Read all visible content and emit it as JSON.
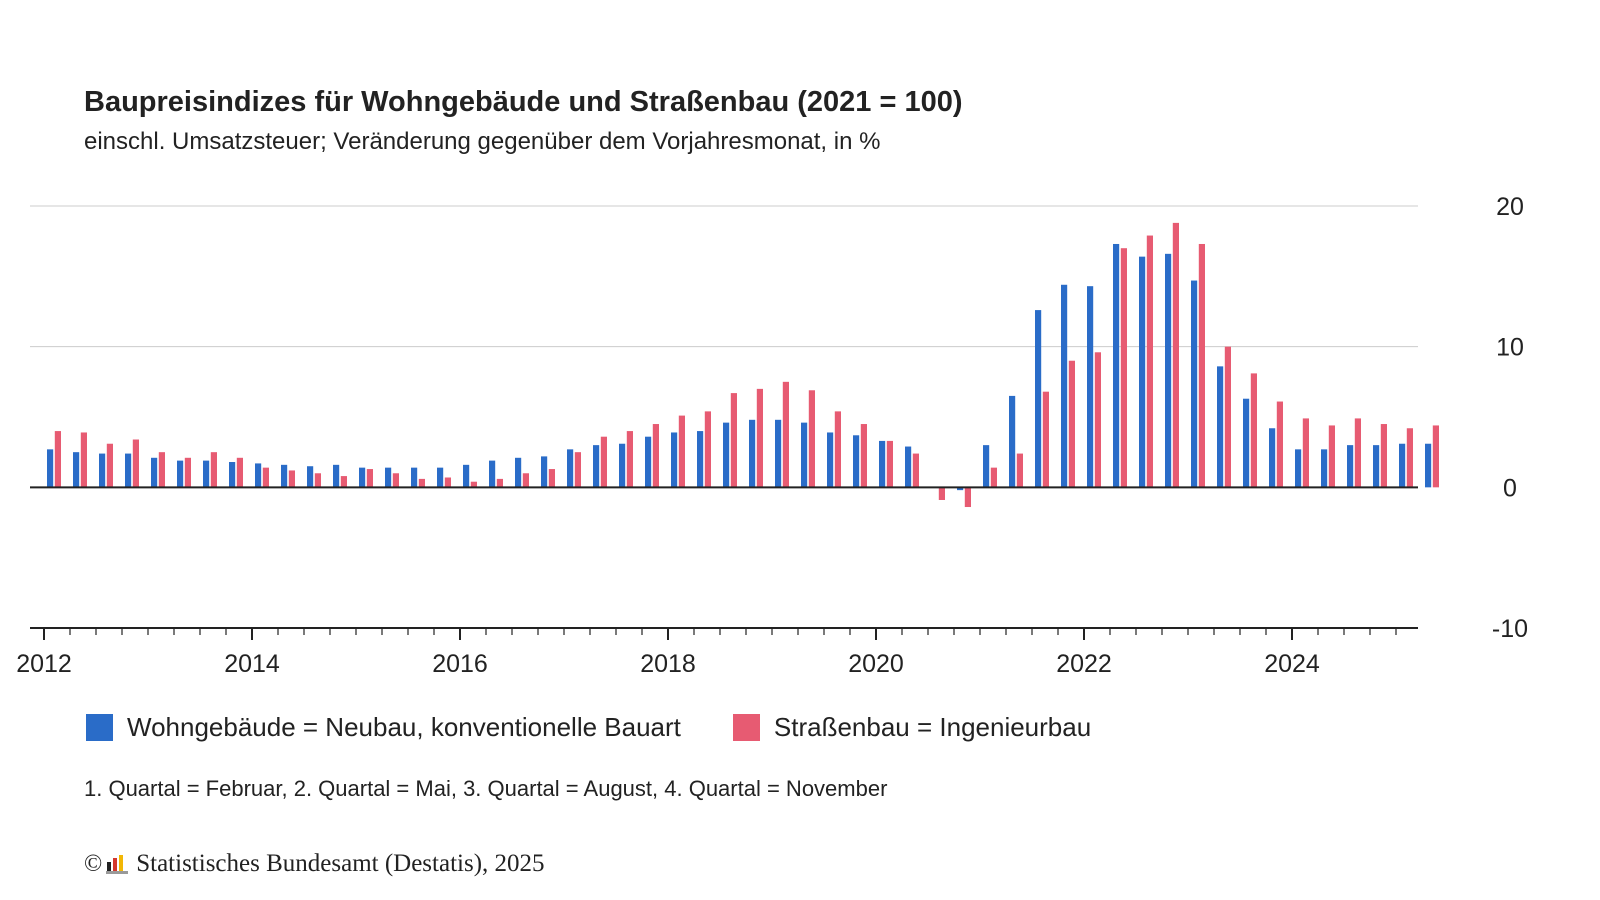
{
  "title": "Baupreisindizes für Wohngebäude und Straßenbau (2021 = 100)",
  "subtitle": "einschl. Umsatzsteuer; Veränderung gegenüber dem Vorjahresmonat, in %",
  "note": "1. Quartal = Februar, 2. Quartal = Mai, 3. Quartal = August, 4. Quartal = November",
  "source": {
    "copyright_symbol": "©",
    "text": "Statistisches Bundesamt (Destatis), 2025",
    "logo_icon": "destatis-logo-icon"
  },
  "colors": {
    "wohn": "#2a6cc8",
    "strasse": "#e75b72",
    "grid": "#cccccc",
    "axis": "#222222"
  },
  "chart_data": {
    "type": "bar",
    "title": "Baupreisindizes für Wohngebäude und Straßenbau (2021 = 100)",
    "subtitle": "einschl. Umsatzsteuer; Veränderung gegenüber dem Vorjahresmonat, in %",
    "ylim": [
      -10,
      20
    ],
    "yticks": [
      20,
      10,
      0,
      -10
    ],
    "y_axis_position": "right",
    "grid": true,
    "legend": "bottom",
    "x_start": "2012-Q1",
    "x_tick_labels": [
      "2012",
      "2014",
      "2016",
      "2018",
      "2020",
      "2022",
      "2024"
    ],
    "categories": [
      "2012-Q1",
      "2012-Q2",
      "2012-Q3",
      "2012-Q4",
      "2013-Q1",
      "2013-Q2",
      "2013-Q3",
      "2013-Q4",
      "2014-Q1",
      "2014-Q2",
      "2014-Q3",
      "2014-Q4",
      "2015-Q1",
      "2015-Q2",
      "2015-Q3",
      "2015-Q4",
      "2016-Q1",
      "2016-Q2",
      "2016-Q3",
      "2016-Q4",
      "2017-Q1",
      "2017-Q2",
      "2017-Q3",
      "2017-Q4",
      "2018-Q1",
      "2018-Q2",
      "2018-Q3",
      "2018-Q4",
      "2019-Q1",
      "2019-Q2",
      "2019-Q3",
      "2019-Q4",
      "2020-Q1",
      "2020-Q2",
      "2020-Q3",
      "2020-Q4",
      "2021-Q1",
      "2021-Q2",
      "2021-Q3",
      "2021-Q4",
      "2022-Q1",
      "2022-Q2",
      "2022-Q3",
      "2022-Q4",
      "2023-Q1",
      "2023-Q2",
      "2023-Q3",
      "2023-Q4",
      "2024-Q1",
      "2024-Q2",
      "2024-Q3",
      "2024-Q4",
      "2025-Q1",
      "2025-Q2"
    ],
    "series": [
      {
        "name": "Wohngebäude = Neubau, konventionelle Bauart",
        "values": [
          2.7,
          2.5,
          2.4,
          2.4,
          2.1,
          1.9,
          1.9,
          1.8,
          1.7,
          1.6,
          1.5,
          1.6,
          1.4,
          1.4,
          1.4,
          1.4,
          1.6,
          1.9,
          2.1,
          2.2,
          2.7,
          3.0,
          3.1,
          3.6,
          3.9,
          4.0,
          4.6,
          4.8,
          4.8,
          4.6,
          3.9,
          3.7,
          3.3,
          2.9,
          0.0,
          -0.2,
          3.0,
          6.5,
          12.6,
          14.4,
          14.3,
          17.3,
          16.4,
          16.6,
          14.7,
          8.6,
          6.3,
          4.2,
          2.7,
          2.7,
          3.0,
          3.0,
          3.1,
          3.1
        ]
      },
      {
        "name": "Straßenbau = Ingenieurbau",
        "values": [
          4.0,
          3.9,
          3.1,
          3.4,
          2.5,
          2.1,
          2.5,
          2.1,
          1.4,
          1.2,
          1.0,
          0.8,
          1.3,
          1.0,
          0.6,
          0.7,
          0.4,
          0.6,
          1.0,
          1.3,
          2.5,
          3.6,
          4.0,
          4.5,
          5.1,
          5.4,
          6.7,
          7.0,
          7.5,
          6.9,
          5.4,
          4.5,
          3.3,
          2.4,
          -0.9,
          -1.4,
          1.4,
          2.4,
          6.8,
          9.0,
          9.6,
          17.0,
          17.9,
          18.8,
          17.3,
          10.0,
          8.1,
          6.1,
          4.9,
          4.4,
          4.9,
          4.5,
          4.2,
          4.4
        ]
      }
    ]
  }
}
